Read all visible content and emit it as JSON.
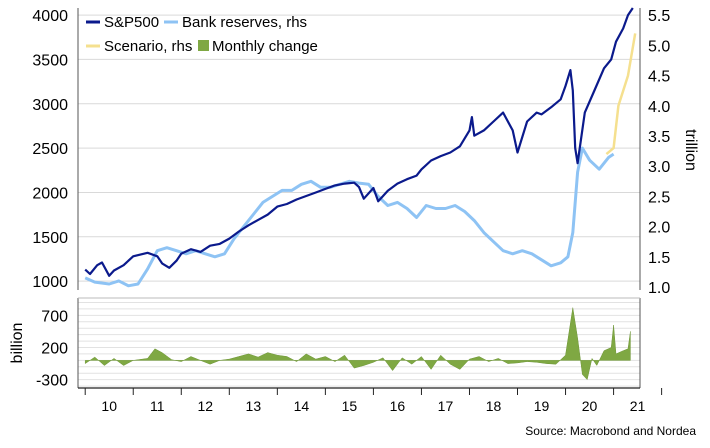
{
  "chart_data": [
    {
      "type": "line",
      "x_unit": "year",
      "xlim": [
        2009.85,
        2021.55
      ],
      "y_left": {
        "ylim": [
          900,
          4080
        ],
        "ticks": [
          1000,
          1500,
          2000,
          2500,
          3000,
          3500,
          4000
        ]
      },
      "y_right": {
        "label": "trillion",
        "ylim": [
          0.95,
          5.62
        ],
        "ticks": [
          "1.0",
          "1.5",
          "2.0",
          "2.5",
          "3.0",
          "3.5",
          "4.0",
          "4.5",
          "5.0",
          "5.5"
        ]
      },
      "legend": {
        "placement": "top-left",
        "entries": [
          {
            "label": "S&P500",
            "color": "#0b1a8c",
            "kind": "line"
          },
          {
            "label": "Bank reserves, rhs",
            "color": "#8ec3f4",
            "kind": "line"
          },
          {
            "label": "Scenario, rhs",
            "color": "#f5e08f",
            "kind": "line"
          },
          {
            "label": "Monthly change",
            "color": "#7fa843",
            "kind": "box"
          }
        ]
      },
      "series": [
        {
          "name": "S&P500",
          "axis": "left",
          "color": "#0b1a8c",
          "x": [
            2010.0,
            2010.1,
            2010.25,
            2010.35,
            2010.5,
            2010.6,
            2010.8,
            2011.0,
            2011.3,
            2011.5,
            2011.6,
            2011.75,
            2011.9,
            2012.0,
            2012.2,
            2012.4,
            2012.6,
            2012.8,
            2013.0,
            2013.2,
            2013.4,
            2013.6,
            2013.8,
            2014.0,
            2014.2,
            2014.4,
            2014.6,
            2014.8,
            2015.0,
            2015.2,
            2015.4,
            2015.6,
            2015.7,
            2015.8,
            2016.0,
            2016.1,
            2016.3,
            2016.5,
            2016.7,
            2016.9,
            2017.0,
            2017.2,
            2017.4,
            2017.6,
            2017.8,
            2018.0,
            2018.05,
            2018.1,
            2018.3,
            2018.5,
            2018.7,
            2018.9,
            2019.0,
            2019.2,
            2019.4,
            2019.5,
            2019.7,
            2019.9,
            2020.0,
            2020.1,
            2020.15,
            2020.2,
            2020.25,
            2020.4,
            2020.6,
            2020.8,
            2020.95,
            2021.05,
            2021.2,
            2021.3,
            2021.4
          ],
          "values": [
            1130,
            1080,
            1180,
            1210,
            1060,
            1120,
            1180,
            1280,
            1320,
            1280,
            1200,
            1150,
            1230,
            1310,
            1360,
            1330,
            1400,
            1420,
            1480,
            1560,
            1630,
            1690,
            1750,
            1840,
            1870,
            1920,
            1960,
            2000,
            2040,
            2080,
            2100,
            2110,
            2060,
            1930,
            2050,
            1900,
            2020,
            2100,
            2150,
            2190,
            2260,
            2360,
            2410,
            2450,
            2520,
            2700,
            2850,
            2640,
            2700,
            2800,
            2900,
            2700,
            2450,
            2800,
            2900,
            2880,
            2960,
            3050,
            3200,
            3380,
            3150,
            2500,
            2330,
            2900,
            3150,
            3400,
            3500,
            3700,
            3850,
            4000,
            4100
          ]
        },
        {
          "name": "Bank reserves, rhs",
          "axis": "right",
          "color": "#8ec3f4",
          "x": [
            2010.0,
            2010.2,
            2010.5,
            2010.7,
            2010.9,
            2011.1,
            2011.3,
            2011.5,
            2011.7,
            2011.9,
            2012.1,
            2012.3,
            2012.5,
            2012.7,
            2012.9,
            2013.1,
            2013.3,
            2013.5,
            2013.7,
            2013.9,
            2014.1,
            2014.3,
            2014.5,
            2014.7,
            2014.9,
            2015.1,
            2015.3,
            2015.5,
            2015.7,
            2015.9,
            2016.1,
            2016.3,
            2016.5,
            2016.7,
            2016.9,
            2017.1,
            2017.3,
            2017.5,
            2017.7,
            2017.9,
            2018.1,
            2018.3,
            2018.5,
            2018.7,
            2018.9,
            2019.1,
            2019.3,
            2019.5,
            2019.7,
            2019.9,
            2020.05,
            2020.15,
            2020.25,
            2020.35,
            2020.5,
            2020.7,
            2020.9,
            2021.0
          ],
          "values": [
            1.15,
            1.08,
            1.05,
            1.1,
            1.02,
            1.05,
            1.3,
            1.6,
            1.65,
            1.6,
            1.55,
            1.6,
            1.55,
            1.5,
            1.55,
            1.8,
            2.0,
            2.2,
            2.4,
            2.5,
            2.6,
            2.6,
            2.7,
            2.75,
            2.65,
            2.65,
            2.7,
            2.75,
            2.72,
            2.7,
            2.5,
            2.35,
            2.4,
            2.3,
            2.15,
            2.35,
            2.3,
            2.3,
            2.35,
            2.25,
            2.1,
            1.9,
            1.75,
            1.6,
            1.55,
            1.6,
            1.55,
            1.45,
            1.35,
            1.4,
            1.5,
            1.9,
            2.9,
            3.3,
            3.1,
            2.95,
            3.15,
            3.2
          ]
        },
        {
          "name": "Scenario, rhs",
          "axis": "right",
          "color": "#f5e08f",
          "x": [
            2020.85,
            2021.0,
            2021.1,
            2021.3,
            2021.45
          ],
          "values": [
            3.2,
            3.3,
            4.0,
            4.5,
            5.2
          ]
        }
      ]
    },
    {
      "type": "area",
      "ylabel": "billion",
      "ylim": [
        -430,
        970
      ],
      "y_ticks": [
        700,
        200,
        -300
      ],
      "series": [
        {
          "name": "Monthly change",
          "color": "#7fa843",
          "x": [
            2010.0,
            2010.2,
            2010.4,
            2010.6,
            2010.8,
            2011.0,
            2011.3,
            2011.45,
            2011.6,
            2011.8,
            2012.0,
            2012.2,
            2012.4,
            2012.6,
            2012.8,
            2013.0,
            2013.2,
            2013.4,
            2013.6,
            2013.8,
            2014.0,
            2014.2,
            2014.4,
            2014.6,
            2014.8,
            2015.0,
            2015.2,
            2015.4,
            2015.6,
            2015.8,
            2016.0,
            2016.2,
            2016.4,
            2016.6,
            2016.8,
            2017.0,
            2017.2,
            2017.4,
            2017.6,
            2017.8,
            2018.0,
            2018.2,
            2018.4,
            2018.6,
            2018.8,
            2019.0,
            2019.2,
            2019.4,
            2019.6,
            2019.8,
            2020.0,
            2020.15,
            2020.25,
            2020.35,
            2020.45,
            2020.55,
            2020.65,
            2020.8,
            2020.95,
            2021.0,
            2021.05,
            2021.2,
            2021.3,
            2021.35
          ],
          "values": [
            -50,
            50,
            -80,
            30,
            -80,
            0,
            30,
            180,
            120,
            10,
            -20,
            60,
            0,
            -60,
            0,
            20,
            60,
            100,
            50,
            120,
            80,
            60,
            -20,
            100,
            20,
            60,
            -20,
            80,
            -120,
            -80,
            -30,
            40,
            -160,
            40,
            -60,
            60,
            -140,
            80,
            -60,
            -140,
            20,
            60,
            -20,
            30,
            -50,
            -40,
            -20,
            -30,
            -50,
            -60,
            80,
            820,
            350,
            -220,
            -300,
            30,
            -80,
            150,
            200,
            550,
            100,
            150,
            180,
            450
          ]
        }
      ]
    },
    {
      "type": "axis",
      "x_ticks": [
        "10",
        "11",
        "12",
        "13",
        "14",
        "15",
        "16",
        "17",
        "18",
        "19",
        "20",
        "21"
      ]
    }
  ],
  "source": "Source: Macrobond and Nordea"
}
